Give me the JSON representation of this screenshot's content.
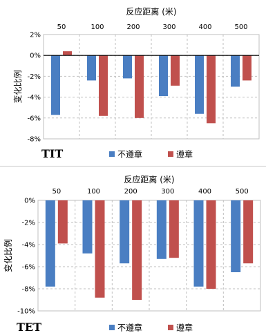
{
  "chart_data": [
    {
      "type": "bar",
      "panel_label": "TIT",
      "top_axis_title": "反应距离 (米)",
      "ylabel": "变化比例",
      "categories": [
        "50",
        "100",
        "200",
        "300",
        "400",
        "500"
      ],
      "ylim": [
        -8,
        2
      ],
      "yticks": [
        "2%",
        "0%",
        "-2%",
        "-4%",
        "-6%",
        "-8%"
      ],
      "grid": true,
      "legend_placement": "bottom",
      "series": [
        {
          "name": "不遵章",
          "color": "#4a7ec2",
          "values": [
            -5.7,
            -2.4,
            -2.2,
            -3.9,
            -5.6,
            -3.0
          ]
        },
        {
          "name": "遵章",
          "color": "#c0504d",
          "values": [
            0.4,
            -5.8,
            -6.0,
            -2.9,
            -6.5,
            -2.4
          ]
        }
      ]
    },
    {
      "type": "bar",
      "panel_label": "TET",
      "top_axis_title": "反应距离 (米)",
      "ylabel": "变化比例",
      "categories": [
        "50",
        "100",
        "200",
        "300",
        "400",
        "500"
      ],
      "ylim": [
        -10,
        0
      ],
      "yticks": [
        "0%",
        "-2%",
        "-4%",
        "-6%",
        "-8%",
        "-10%"
      ],
      "grid": true,
      "legend_placement": "bottom",
      "series": [
        {
          "name": "不遵章",
          "color": "#4a7ec2",
          "values": [
            -7.8,
            -4.8,
            -5.7,
            -5.3,
            -7.8,
            -6.5
          ]
        },
        {
          "name": "遵章",
          "color": "#c0504d",
          "values": [
            -3.9,
            -8.8,
            -9.0,
            -5.2,
            -8.0,
            -5.7
          ]
        }
      ]
    }
  ]
}
